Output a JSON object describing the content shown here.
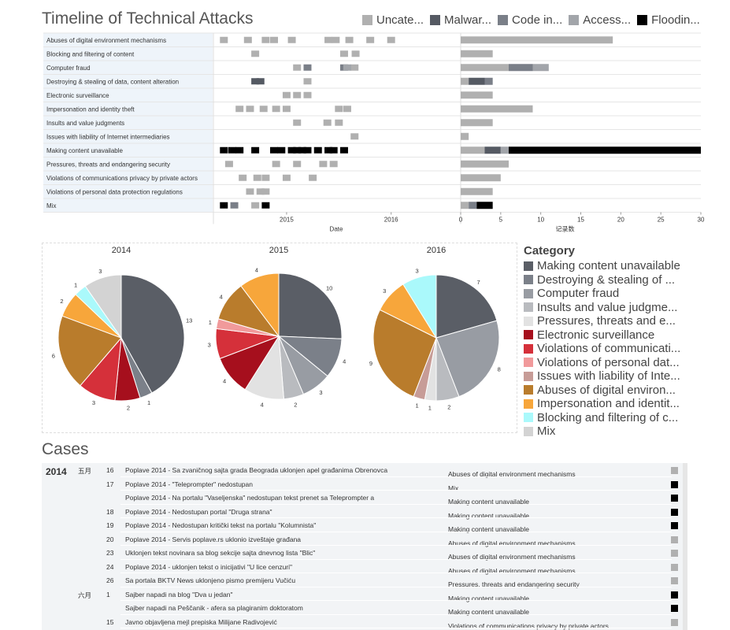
{
  "title": "Timeline of Technical Attacks",
  "legend_top": [
    {
      "label": "Uncate...",
      "color": "#b0b0b0"
    },
    {
      "label": "Malwar...",
      "color": "#555a63"
    },
    {
      "label": "Code in...",
      "color": "#7a7f88"
    },
    {
      "label": "Access...",
      "color": "#a2a5aa"
    },
    {
      "label": "Floodin...",
      "color": "#000000"
    }
  ],
  "colors": {
    "uncategorized": "#b0b0b0",
    "malware": "#555a63",
    "code": "#7a7f88",
    "access": "#a2a5aa",
    "flooding": "#000000"
  },
  "chart_data": [
    {
      "type": "scatter",
      "xlabel": "Date",
      "x_ticks": [
        "2015",
        "2016"
      ],
      "categories": [
        "Abuses of digital environment mechanisms",
        "Blocking and filtering of content",
        "Computer fraud",
        "Destroying & stealing of data, content alteration",
        "Electronic surveillance",
        "Impersonation and identity theft",
        "Insults and value judgments",
        "Issues with liability of Internet intermediaries",
        "Making content unavailable",
        "Pressures, threats and endangering security",
        "Violations of communications privacy by private actors",
        "Violations of personal data protection regulations",
        "Mix"
      ],
      "series": [
        {
          "name": "Uncate...",
          "points": [
            [
              2014.4,
              0
            ],
            [
              2014.63,
              0
            ],
            [
              2014.8,
              0
            ],
            [
              2014.88,
              0
            ],
            [
              2015.05,
              0
            ],
            [
              2015.4,
              0
            ],
            [
              2015.47,
              0
            ],
            [
              2015.6,
              0
            ],
            [
              2015.8,
              0
            ],
            [
              2016.0,
              0
            ],
            [
              2014.7,
              1
            ],
            [
              2015.55,
              1
            ],
            [
              2015.66,
              1
            ],
            [
              2015.1,
              2
            ],
            [
              2015.65,
              2
            ],
            [
              2015.2,
              3
            ],
            [
              2015.0,
              4
            ],
            [
              2015.1,
              4
            ],
            [
              2015.2,
              4
            ],
            [
              2014.55,
              5
            ],
            [
              2014.65,
              5
            ],
            [
              2014.78,
              5
            ],
            [
              2014.9,
              5
            ],
            [
              2015.0,
              5
            ],
            [
              2015.5,
              5
            ],
            [
              2015.58,
              5
            ],
            [
              2015.1,
              6
            ],
            [
              2015.39,
              6
            ],
            [
              2015.5,
              6
            ],
            [
              2015.65,
              7
            ],
            [
              2014.9,
              9
            ],
            [
              2014.45,
              9
            ],
            [
              2015.1,
              9
            ],
            [
              2015.35,
              9
            ],
            [
              2015.45,
              9
            ],
            [
              2014.58,
              10
            ],
            [
              2014.72,
              10
            ],
            [
              2014.8,
              10
            ],
            [
              2015.0,
              10
            ],
            [
              2015.25,
              10
            ],
            [
              2014.65,
              11
            ],
            [
              2014.75,
              11
            ],
            [
              2014.8,
              11
            ],
            [
              2014.7,
              12
            ]
          ]
        },
        {
          "name": "Malwar...",
          "points": [
            [
              2014.7,
              3
            ],
            [
              2014.75,
              3
            ]
          ]
        },
        {
          "name": "Code in...",
          "points": [
            [
              2015.2,
              2
            ],
            [
              2015.55,
              2
            ],
            [
              2014.5,
              12
            ]
          ]
        },
        {
          "name": "Access...",
          "points": [
            [
              2015.58,
              2
            ]
          ]
        },
        {
          "name": "Floodin...",
          "points": [
            [
              2014.4,
              8
            ],
            [
              2014.48,
              8
            ],
            [
              2014.55,
              8
            ],
            [
              2014.7,
              8
            ],
            [
              2014.88,
              8
            ],
            [
              2014.95,
              8
            ],
            [
              2015.05,
              8
            ],
            [
              2015.1,
              8
            ],
            [
              2015.15,
              8
            ],
            [
              2015.2,
              8
            ],
            [
              2015.3,
              8
            ],
            [
              2015.4,
              8
            ],
            [
              2015.45,
              8
            ],
            [
              2015.55,
              8
            ],
            [
              2014.4,
              12
            ],
            [
              2014.8,
              12
            ]
          ]
        }
      ]
    },
    {
      "type": "bar",
      "xlabel": "记录数",
      "xlim": [
        0,
        30
      ],
      "x_ticks": [
        0,
        5,
        10,
        15,
        20,
        25,
        30
      ],
      "categories": [
        "Abuses of digital environment mechanisms",
        "Blocking and filtering of content",
        "Computer fraud",
        "Destroying & stealing of data, content alteration",
        "Electronic surveillance",
        "Impersonation and identity theft",
        "Insults and value judgments",
        "Issues with liability of Internet intermediaries",
        "Making content unavailable",
        "Pressures, threats and endangering security",
        "Violations of communications privacy by private actors",
        "Violations of personal data protection regulations",
        "Mix"
      ],
      "series": [
        {
          "name": "Uncate...",
          "values": [
            19,
            4,
            6,
            1,
            4,
            9,
            4,
            1,
            3,
            6,
            5,
            4,
            1
          ]
        },
        {
          "name": "Malwar...",
          "values": [
            0,
            0,
            0,
            2,
            0,
            0,
            0,
            0,
            2,
            0,
            0,
            0,
            0
          ]
        },
        {
          "name": "Code in...",
          "values": [
            0,
            0,
            3,
            1,
            0,
            0,
            0,
            0,
            0,
            0,
            0,
            0,
            1
          ]
        },
        {
          "name": "Access...",
          "values": [
            0,
            0,
            2,
            0,
            0,
            0,
            0,
            0,
            1,
            0,
            0,
            0,
            0
          ]
        },
        {
          "name": "Floodin...",
          "values": [
            0,
            0,
            0,
            0,
            0,
            0,
            0,
            0,
            24,
            0,
            0,
            0,
            2
          ]
        }
      ]
    },
    {
      "type": "pie",
      "title": "2014",
      "slices": [
        {
          "category": "Making content unavailable",
          "value": 13
        },
        {
          "category": "Destroying & stealing of ...",
          "value": 1
        },
        {
          "category": "Electronic surveillance",
          "value": 2
        },
        {
          "category": "Violations of communicati...",
          "value": 3
        },
        {
          "category": "Abuses of digital environ...",
          "value": 6
        },
        {
          "category": "Impersonation and identit...",
          "value": 2
        },
        {
          "category": "Blocking and filtering of c...",
          "value": 1
        },
        {
          "category": "Mix",
          "value": 3
        }
      ]
    },
    {
      "type": "pie",
      "title": "2015",
      "slices": [
        {
          "category": "Making content unavailable",
          "value": 10
        },
        {
          "category": "Destroying & stealing of ...",
          "value": 4
        },
        {
          "category": "Computer fraud",
          "value": 3
        },
        {
          "category": "Insults and value judgme...",
          "value": 2
        },
        {
          "category": "Pressures, threats and e...",
          "value": 4
        },
        {
          "category": "Electronic surveillance",
          "value": 4
        },
        {
          "category": "Violations of communicati...",
          "value": 3
        },
        {
          "category": "Violations of personal dat...",
          "value": 1
        },
        {
          "category": "Abuses of digital environ...",
          "value": 4
        },
        {
          "category": "Impersonation and identit...",
          "value": 4
        }
      ]
    },
    {
      "type": "pie",
      "title": "2016",
      "slices": [
        {
          "category": "Making content unavailable",
          "value": 7
        },
        {
          "category": "Computer fraud",
          "value": 8
        },
        {
          "category": "Insults and value judgme...",
          "value": 2
        },
        {
          "category": "Pressures, threats and e...",
          "value": 1
        },
        {
          "category": "Issues with liability of Inte...",
          "value": 1
        },
        {
          "category": "Abuses of digital environ...",
          "value": 9
        },
        {
          "category": "Impersonation and identit...",
          "value": 3
        },
        {
          "category": "Blocking and filtering of c...",
          "value": 3
        }
      ]
    }
  ],
  "pie_legend": {
    "title": "Category",
    "items": [
      {
        "label": "Making content unavailable",
        "color": "#5a5e66"
      },
      {
        "label": "Destroying & stealing of ...",
        "color": "#7b8089"
      },
      {
        "label": "Computer fraud",
        "color": "#989ca3"
      },
      {
        "label": "Insults and value judgme...",
        "color": "#b9bbbf"
      },
      {
        "label": "Pressures, threats and e...",
        "color": "#e2e2e2"
      },
      {
        "label": "Electronic surveillance",
        "color": "#a60f1d"
      },
      {
        "label": "Violations of communicati...",
        "color": "#d5303a"
      },
      {
        "label": "Violations of personal dat...",
        "color": "#f19a9b"
      },
      {
        "label": "Issues with liability of Inte...",
        "color": "#c79c97"
      },
      {
        "label": "Abuses of digital environ...",
        "color": "#b97c2c"
      },
      {
        "label": "Impersonation and identit...",
        "color": "#f7a63b"
      },
      {
        "label": "Blocking and filtering of c...",
        "color": "#aaf9fb"
      },
      {
        "label": "Mix",
        "color": "#d3d3d3"
      }
    ]
  },
  "cases": {
    "title": "Cases",
    "year": "2014",
    "rows": [
      {
        "month": "五月",
        "day": "16",
        "title": "Poplave 2014 - Sa zvaničnog sajta grada Beograda uklonjen apel građanima Obrenovca",
        "category": "Abuses of digital environment mechanisms",
        "color": "#b0b0b0"
      },
      {
        "month": "",
        "day": "17",
        "title": "Poplave 2014 - \"Teleprompter\" nedostupan",
        "category": "Mix",
        "color": "#000000"
      },
      {
        "month": "",
        "day": "",
        "title": "Poplave 2014 - Na portalu \"Vaseljenska\" nedostupan tekst prenet sa Teleprompter a",
        "category": "Making content unavailable",
        "color": "#000000"
      },
      {
        "month": "",
        "day": "18",
        "title": "Poplave 2014 - Nedostupan portal \"Druga strana\"",
        "category": "Making content unavailable",
        "color": "#000000"
      },
      {
        "month": "",
        "day": "19",
        "title": "Poplave 2014 - Nedostupan kritički tekst na portalu \"Kolumnista\"",
        "category": "Making content unavailable",
        "color": "#000000"
      },
      {
        "month": "",
        "day": "20",
        "title": "Poplave 2014 - Servis poplave.rs uklonio izveštaje građana",
        "category": "Abuses of digital environment mechanisms",
        "color": "#b0b0b0"
      },
      {
        "month": "",
        "day": "23",
        "title": "Uklonjen tekst novinara sa blog sekcije sajta dnevnog lista \"Blic\"",
        "category": "Abuses of digital environment mechanisms",
        "color": "#b0b0b0"
      },
      {
        "month": "",
        "day": "24",
        "title": "Poplave 2014 - uklonjen tekst o inicijativi \"U lice cenzuri\"",
        "category": "Abuses of digital environment mechanisms",
        "color": "#b0b0b0"
      },
      {
        "month": "",
        "day": "26",
        "title": "Sa portala BKTV News uklonjeno pismo premijeru Vučiću",
        "category": "Pressures, threats and endangering security",
        "color": "#b0b0b0"
      },
      {
        "month": "六月",
        "day": "1",
        "title": "Sajber napadi na blog \"Dva u jedan\"",
        "category": "Making content unavailable",
        "color": "#000000"
      },
      {
        "month": "",
        "day": "",
        "title": "Sajber napadi na Peščanik - afera sa plagiranim doktoratom",
        "category": "Making content unavailable",
        "color": "#000000"
      },
      {
        "month": "",
        "day": "15",
        "title": "Javno objavljena mejl prepiska Milijane Radivojević",
        "category": "Violations of communications privacy by private actors",
        "color": "#b0b0b0"
      }
    ]
  }
}
